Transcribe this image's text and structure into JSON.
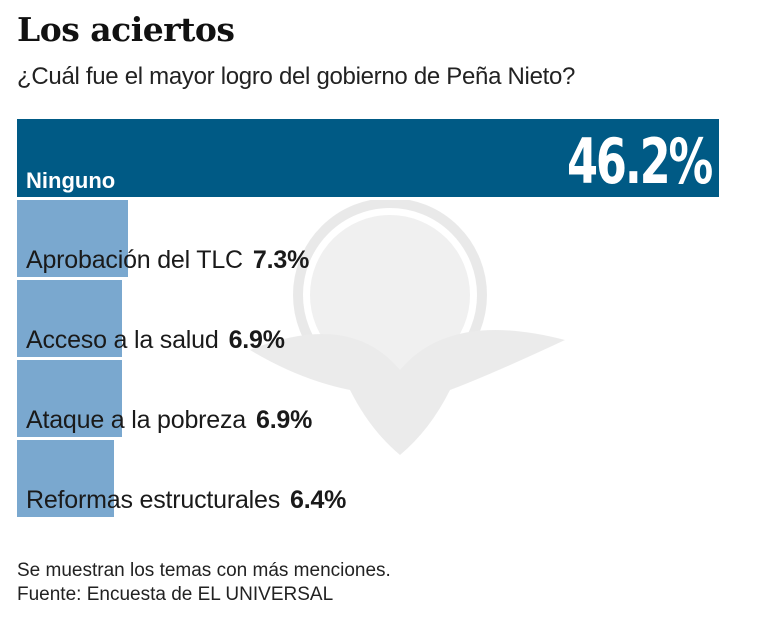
{
  "header": {
    "title": "Los aciertos",
    "subtitle": "¿Cuál fue el mayor logro del gobierno de Peña Nieto?"
  },
  "colors": {
    "highlight_bar": "#005a85",
    "bar": "#7aa8cf",
    "text": "#1a1a1a"
  },
  "chart_data": {
    "type": "bar",
    "orientation": "horizontal",
    "title": "Los aciertos",
    "subtitle": "¿Cuál fue el mayor logro del gobierno de Peña Nieto?",
    "categories": [
      "Ninguno",
      "Aprobación del TLC",
      "Acceso a la salud",
      "Ataque a la pobreza",
      "Reformas estructurales"
    ],
    "values": [
      46.2,
      7.3,
      6.9,
      6.9,
      6.4
    ],
    "labels": [
      "46.2%",
      "7.3%",
      "6.9%",
      "6.9%",
      "6.4%"
    ],
    "unit": "%",
    "xlabel": "",
    "ylabel": "",
    "grid": false,
    "legend": null,
    "notes": [
      "Se muestran los temas con más menciones.",
      "Fuente: Encuesta de EL UNIVERSAL"
    ]
  },
  "bars": {
    "top": {
      "label": "Ninguno",
      "value": "46.2%"
    },
    "rows": [
      {
        "label": "Aprobación del TLC",
        "value": "7.3%"
      },
      {
        "label": "Acceso a la salud",
        "value": "6.9%"
      },
      {
        "label": "Ataque a la pobreza",
        "value": "6.9%"
      },
      {
        "label": "Reformas estructurales",
        "value": "6.4%"
      }
    ]
  },
  "footer": {
    "note": "Se muestran los temas con más menciones.",
    "source": "Fuente: Encuesta de EL UNIVERSAL"
  }
}
